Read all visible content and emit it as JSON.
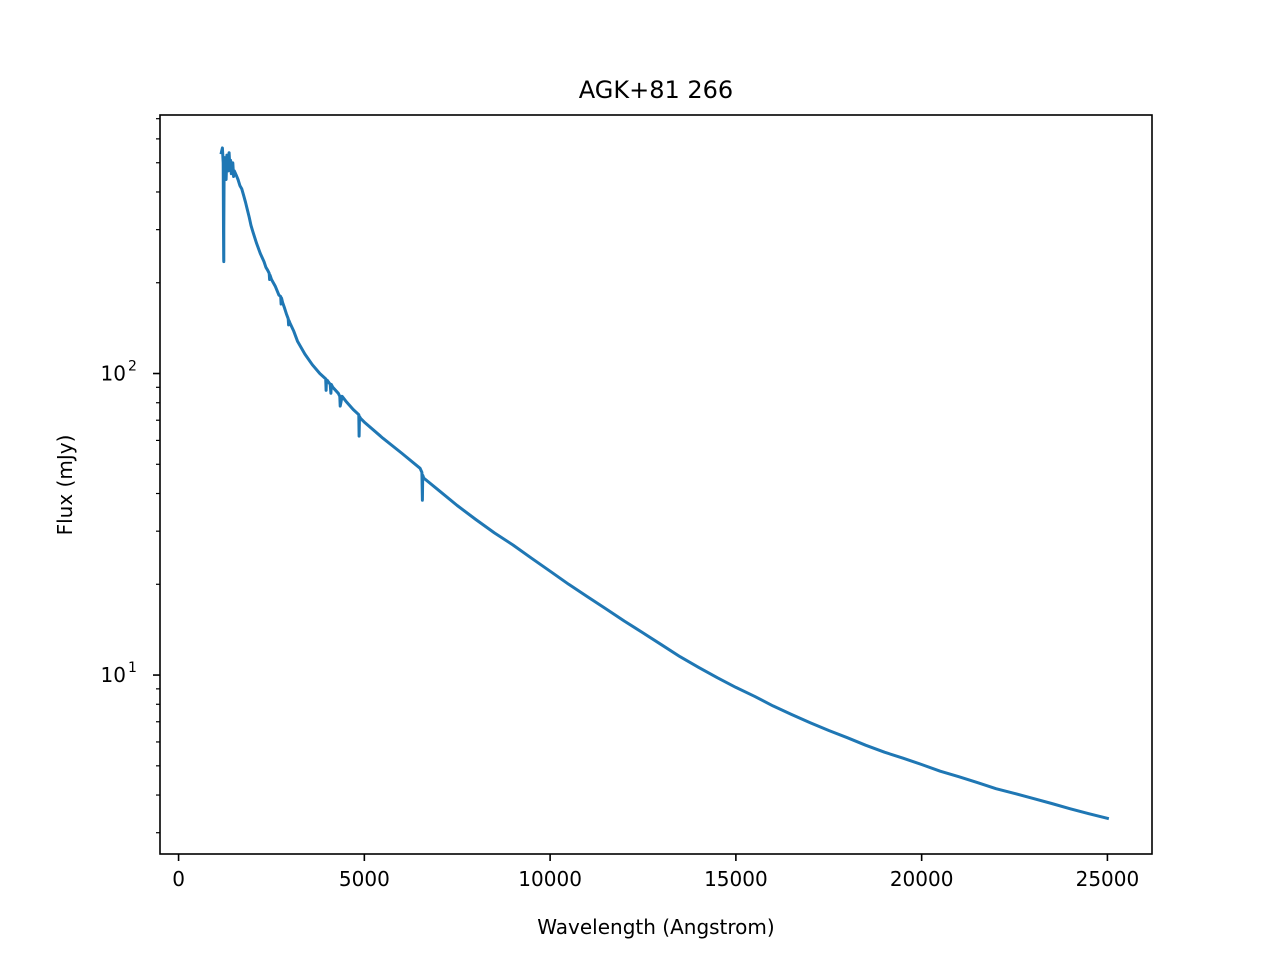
{
  "chart_data": {
    "type": "line",
    "title": "AGK+81 266",
    "xlabel": "Wavelength (Angstrom)",
    "ylabel": "Flux (mJy)",
    "xlim": [
      -500,
      26200
    ],
    "ylim": [
      2.55,
      720
    ],
    "yscale": "log",
    "grid": false,
    "color": "#1f77b4",
    "x_ticks": [
      {
        "value": 0,
        "label": "0"
      },
      {
        "value": 5000,
        "label": "5000"
      },
      {
        "value": 10000,
        "label": "10000"
      },
      {
        "value": 15000,
        "label": "15000"
      },
      {
        "value": 20000,
        "label": "20000"
      },
      {
        "value": 25000,
        "label": "25000"
      }
    ],
    "y_major_ticks": [
      {
        "value": 10,
        "base": "10",
        "exp": "1"
      },
      {
        "value": 100,
        "base": "10",
        "exp": "2"
      }
    ],
    "y_minor_ticks": [
      3,
      4,
      5,
      6,
      7,
      8,
      9,
      20,
      30,
      40,
      50,
      60,
      70,
      80,
      90,
      200,
      300,
      400,
      500,
      600,
      700
    ],
    "series": [
      {
        "x": [
          1150,
          1180,
          1200,
          1210,
          1215,
          1216,
          1218,
          1225,
          1240,
          1260,
          1280,
          1300,
          1320,
          1340,
          1360,
          1380,
          1400,
          1420,
          1440,
          1460,
          1480,
          1500,
          1550,
          1600,
          1650,
          1700,
          1750,
          1800,
          1850,
          1900,
          1950,
          2000,
          2100,
          2200,
          2300,
          2350,
          2400,
          2440,
          2450,
          2460,
          2500,
          2600,
          2700,
          2750,
          2760,
          2770,
          2800,
          2850,
          2900,
          2950,
          2960,
          2970,
          3000,
          3100,
          3200,
          3400,
          3600,
          3800,
          3960,
          3970,
          3980,
          4000,
          4080,
          4100,
          4110,
          4150,
          4300,
          4340,
          4350,
          4400,
          4500,
          4700,
          4850,
          4860,
          4870,
          4900,
          5000,
          5500,
          6000,
          6500,
          6550,
          6563,
          6570,
          6600,
          7000,
          7500,
          8000,
          8500,
          9000,
          9500,
          10000,
          10500,
          11000,
          11500,
          12000,
          12500,
          13000,
          13500,
          14000,
          14500,
          15000,
          15500,
          16000,
          16500,
          17000,
          17500,
          18000,
          18500,
          19000,
          19500,
          20000,
          20500,
          21000,
          21500,
          22000,
          22500,
          23000,
          23500,
          24000,
          24500,
          25000
        ],
        "y": [
          540,
          560,
          500,
          300,
          240,
          235,
          300,
          460,
          520,
          480,
          440,
          530,
          500,
          470,
          540,
          490,
          510,
          460,
          480,
          500,
          450,
          470,
          455,
          440,
          420,
          410,
          390,
          370,
          350,
          330,
          310,
          295,
          270,
          250,
          235,
          225,
          220,
          215,
          205,
          212,
          205,
          195,
          182,
          180,
          170,
          178,
          172,
          165,
          158,
          152,
          145,
          150,
          147,
          138,
          128,
          116,
          107,
          100,
          96,
          88,
          94,
          95,
          92,
          86,
          92,
          90,
          86,
          84,
          78,
          84,
          81,
          76,
          73,
          62,
          72,
          71,
          69,
          61,
          54.5,
          48.5,
          47,
          38,
          46,
          45,
          41,
          36.5,
          32.8,
          29.6,
          27,
          24.4,
          22.1,
          20,
          18.2,
          16.6,
          15.1,
          13.8,
          12.6,
          11.5,
          10.6,
          9.8,
          9.1,
          8.5,
          7.9,
          7.4,
          6.95,
          6.55,
          6.2,
          5.85,
          5.55,
          5.3,
          5.05,
          4.8,
          4.6,
          4.4,
          4.2,
          4.05,
          3.9,
          3.75,
          3.6,
          3.47,
          3.35
        ]
      }
    ]
  }
}
